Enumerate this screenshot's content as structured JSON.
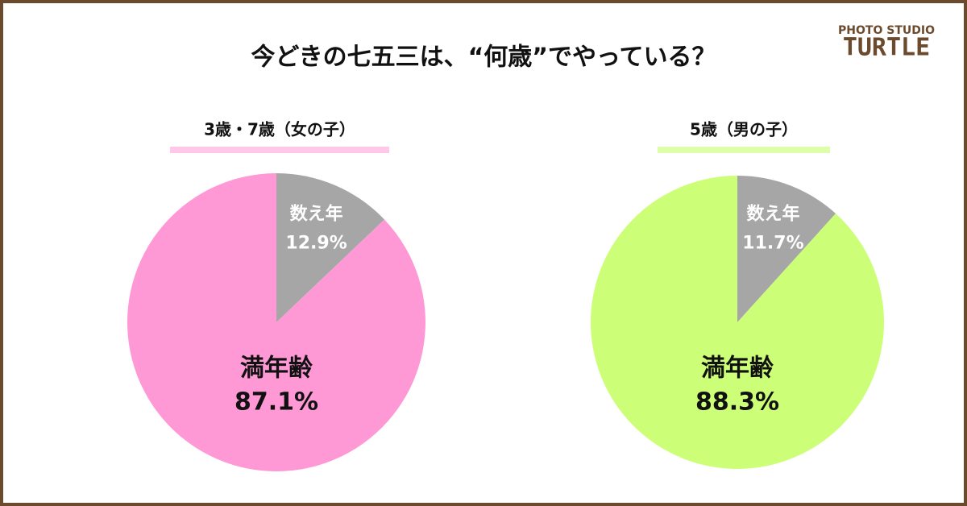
{
  "title": "今どきの七五三は、“何歳”でやっている？",
  "logo": {
    "top": "PHOTO STUDIO",
    "bottom": "TURTLE"
  },
  "chart_data": [
    {
      "type": "pie",
      "title": "3歳・7歳（女の子）",
      "title_color": "#ffc8e8",
      "categories": [
        "数え年",
        "満年齢"
      ],
      "values": [
        12.9,
        87.1
      ],
      "value_labels": [
        "12.9%",
        "87.1%"
      ],
      "colors": [
        "#a6a6a6",
        "#ff99d6"
      ]
    },
    {
      "type": "pie",
      "title": "5歳（男の子）",
      "title_color": "#ddffaa",
      "categories": [
        "数え年",
        "満年齢"
      ],
      "values": [
        11.7,
        88.3
      ],
      "value_labels": [
        "11.7%",
        "88.3%"
      ],
      "colors": [
        "#a6a6a6",
        "#ccff77"
      ]
    }
  ]
}
